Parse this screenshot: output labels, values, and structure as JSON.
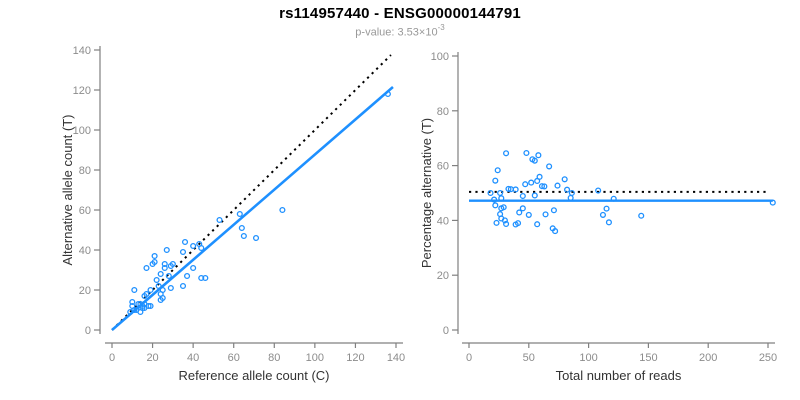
{
  "header": {
    "title": "rs114957440 - ENSG00000144791",
    "subtitle_prefix": "p-value: 3.53×10",
    "subtitle_exponent": "-3"
  },
  "colors": {
    "point": "#1E90FF",
    "fit_line": "#1E90FF",
    "reference_line": "#000000",
    "axis": "#808080",
    "tick_label": "#8C8C8C",
    "axis_title": "#333333",
    "title": "#000000",
    "subtitle": "#999999",
    "background": "#FFFFFF"
  },
  "chart_data": [
    {
      "type": "scatter",
      "panel": "left",
      "xlabel": "Reference allele count (C)",
      "ylabel": "Alternative allele count (T)",
      "xlim": [
        0,
        140
      ],
      "ylim": [
        0,
        140
      ],
      "xticks": [
        0,
        20,
        40,
        60,
        80,
        100,
        120,
        140
      ],
      "yticks": [
        0,
        20,
        40,
        60,
        80,
        100,
        120,
        140
      ],
      "grid": false,
      "legend": "none",
      "points": [
        [
          9,
          9
        ],
        [
          10,
          12
        ],
        [
          10,
          14
        ],
        [
          11,
          10
        ],
        [
          12,
          10
        ],
        [
          14,
          9
        ],
        [
          13,
          13
        ],
        [
          15,
          11
        ],
        [
          14,
          13
        ],
        [
          15,
          12
        ],
        [
          16,
          11
        ],
        [
          16,
          13
        ],
        [
          18,
          12
        ],
        [
          19,
          12
        ],
        [
          11,
          20
        ],
        [
          16,
          17
        ],
        [
          17,
          18
        ],
        [
          19,
          20
        ],
        [
          24,
          15
        ],
        [
          25,
          16
        ],
        [
          24,
          18
        ],
        [
          23,
          22
        ],
        [
          25,
          20
        ],
        [
          22,
          25
        ],
        [
          17,
          31
        ],
        [
          29,
          21
        ],
        [
          24,
          28
        ],
        [
          20,
          33
        ],
        [
          21,
          34
        ],
        [
          28,
          27
        ],
        [
          26,
          31
        ],
        [
          35,
          22
        ],
        [
          21,
          37
        ],
        [
          26,
          33
        ],
        [
          29,
          32
        ],
        [
          30,
          33
        ],
        [
          37,
          27
        ],
        [
          27,
          40
        ],
        [
          44,
          26
        ],
        [
          40,
          31
        ],
        [
          46,
          26
        ],
        [
          35,
          39
        ],
        [
          36,
          44
        ],
        [
          40,
          42
        ],
        [
          43,
          43
        ],
        [
          44,
          41
        ],
        [
          53,
          55
        ],
        [
          65,
          47
        ],
        [
          64,
          51
        ],
        [
          71,
          46
        ],
        [
          63,
          58
        ],
        [
          84,
          60
        ],
        [
          136,
          118
        ]
      ],
      "lines": [
        {
          "name": "identity-reference",
          "style": "dotted",
          "color": "#000000",
          "width": 2,
          "from": [
            0,
            0
          ],
          "to": [
            137.5,
            137.5
          ]
        },
        {
          "name": "fit",
          "style": "solid",
          "color": "#1E90FF",
          "width": 2.6,
          "from": [
            0,
            0
          ],
          "to": [
            138.5,
            121.5
          ]
        }
      ]
    },
    {
      "type": "scatter",
      "panel": "right",
      "xlabel": "Total number of reads",
      "ylabel": "Percentage alternative (T)",
      "xlim": [
        0,
        250
      ],
      "ylim": [
        0,
        100
      ],
      "xticks": [
        0,
        50,
        100,
        150,
        200,
        250
      ],
      "yticks": [
        0,
        20,
        40,
        60,
        80,
        100
      ],
      "grid": false,
      "legend": "none",
      "points": [
        [
          18,
          50
        ],
        [
          22,
          54.5
        ],
        [
          24,
          58.3
        ],
        [
          21,
          47.6
        ],
        [
          22,
          45.5
        ],
        [
          23,
          39.1
        ],
        [
          26,
          50
        ],
        [
          26,
          42.3
        ],
        [
          27,
          48.1
        ],
        [
          27,
          44.4
        ],
        [
          27,
          40.7
        ],
        [
          29,
          44.8
        ],
        [
          30,
          40
        ],
        [
          31,
          38.7
        ],
        [
          31,
          64.5
        ],
        [
          33,
          51.5
        ],
        [
          35,
          51.4
        ],
        [
          39,
          51.3
        ],
        [
          39,
          38.5
        ],
        [
          41,
          39
        ],
        [
          42,
          42.9
        ],
        [
          45,
          48.9
        ],
        [
          45,
          44.4
        ],
        [
          47,
          53.2
        ],
        [
          48,
          64.6
        ],
        [
          50,
          42
        ],
        [
          52,
          53.8
        ],
        [
          53,
          62.3
        ],
        [
          55,
          61.8
        ],
        [
          55,
          49.1
        ],
        [
          57,
          54.4
        ],
        [
          57,
          38.6
        ],
        [
          58,
          63.8
        ],
        [
          59,
          55.9
        ],
        [
          61,
          52.5
        ],
        [
          63,
          52.4
        ],
        [
          64,
          42.2
        ],
        [
          67,
          59.7
        ],
        [
          70,
          37.1
        ],
        [
          71,
          43.7
        ],
        [
          72,
          36.1
        ],
        [
          74,
          52.7
        ],
        [
          80,
          55
        ],
        [
          82,
          51.2
        ],
        [
          86,
          50
        ],
        [
          85,
          48.2
        ],
        [
          108,
          50.9
        ],
        [
          112,
          42
        ],
        [
          115,
          44.3
        ],
        [
          117,
          39.3
        ],
        [
          121,
          47.9
        ],
        [
          144,
          41.7
        ],
        [
          254,
          46.5
        ]
      ],
      "lines": [
        {
          "name": "expected-50pct-reference",
          "style": "dotted",
          "color": "#000000",
          "width": 2,
          "from": [
            0,
            50.4
          ],
          "to": [
            250,
            50.4
          ]
        },
        {
          "name": "mean-percentage",
          "style": "solid",
          "color": "#1E90FF",
          "width": 2.4,
          "from": [
            0,
            47.2
          ],
          "to": [
            254,
            47.2
          ]
        }
      ]
    }
  ]
}
